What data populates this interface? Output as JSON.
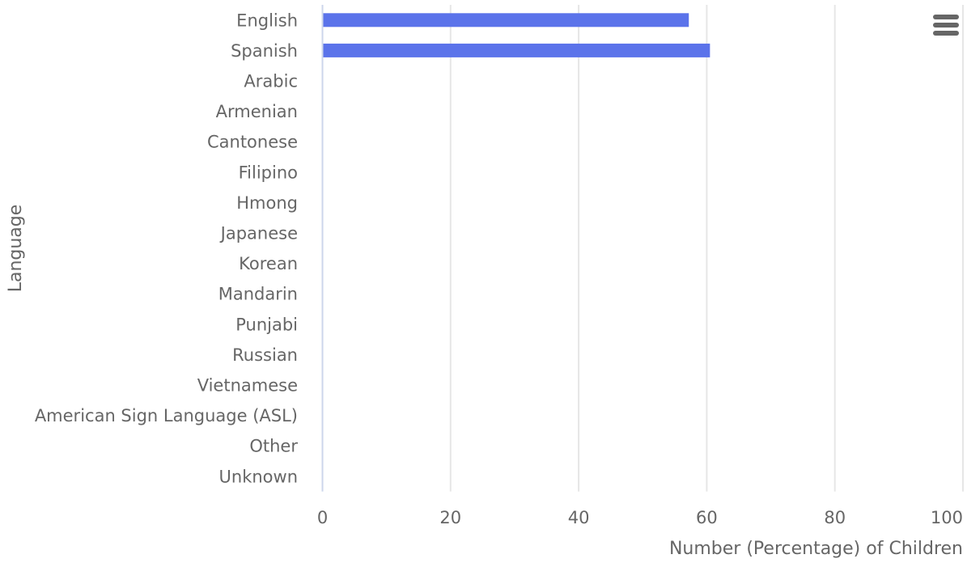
{
  "colors": {
    "bar": "#5b73ea",
    "grid": "#e6e6e6",
    "axis": "#ccd6eb",
    "text": "#666666",
    "menu_icon": "#666666"
  },
  "menu": {
    "icon": "hamburger-menu-icon"
  },
  "chart_data": {
    "type": "bar",
    "orientation": "horizontal",
    "categories": [
      "English",
      "Spanish",
      "Arabic",
      "Armenian",
      "Cantonese",
      "Filipino",
      "Hmong",
      "Japanese",
      "Korean",
      "Mandarin",
      "Punjabi",
      "Russian",
      "Vietnamese",
      "American Sign Language (ASL)",
      "Other",
      "Unknown"
    ],
    "values": [
      57.2,
      60.5,
      0,
      0,
      0,
      0,
      0,
      0,
      0,
      0,
      0,
      0,
      0,
      0,
      0,
      0
    ],
    "xlabel": "Number (Percentage) of Children",
    "ylabel": "Language",
    "xlim": [
      0,
      100
    ],
    "xticks": [
      "0",
      "20",
      "40",
      "60",
      "80",
      "100"
    ],
    "grid": true,
    "legend": false
  }
}
